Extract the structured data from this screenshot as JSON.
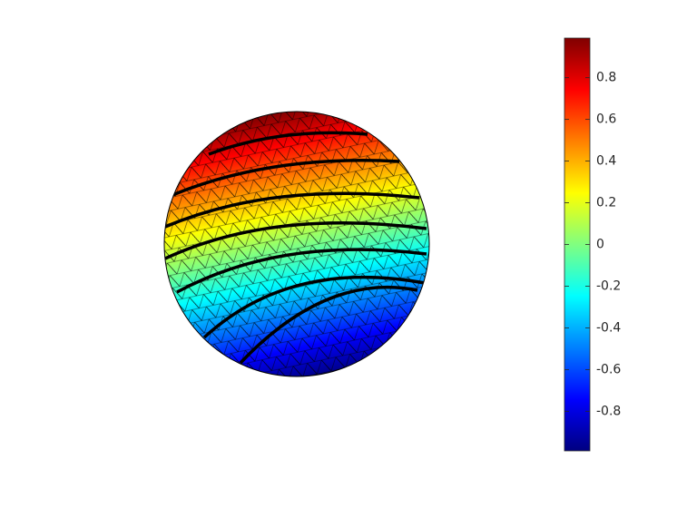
{
  "chart_data": {
    "type": "surface",
    "colormap": "jet",
    "clim": [
      -0.99,
      0.99
    ],
    "cticks": [
      -0.8,
      -0.6,
      -0.4,
      -0.2,
      0,
      0.2,
      0.4,
      0.6,
      0.8
    ]
  }
}
